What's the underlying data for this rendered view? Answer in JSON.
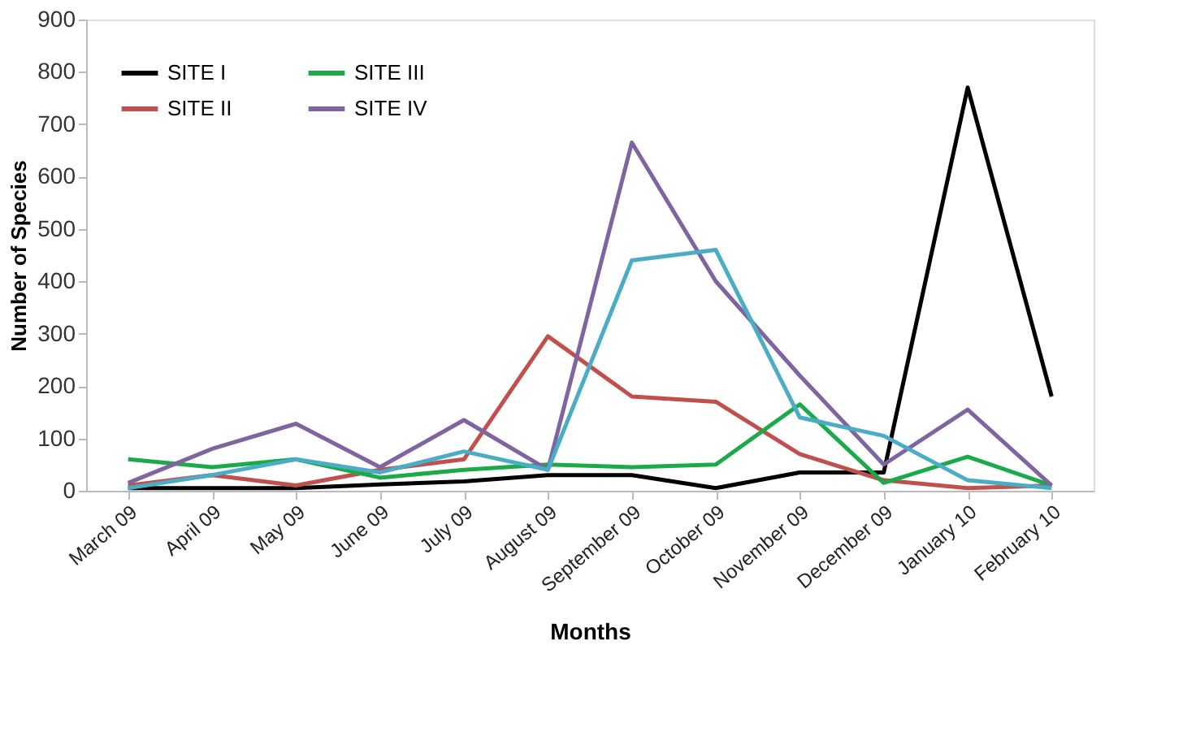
{
  "chart_data": {
    "type": "line",
    "xlabel": "Months",
    "ylabel": "Number of Species",
    "categories": [
      "March 09",
      "April 09",
      "May 09",
      "June 09",
      "July 09",
      "August 09",
      "September  09",
      "October 09",
      "November 09",
      "December 09",
      "January 10",
      "February 10"
    ],
    "ylim": [
      0,
      900
    ],
    "yticks": [
      0,
      100,
      200,
      300,
      400,
      500,
      600,
      700,
      800,
      900
    ],
    "grid": false,
    "legend": "top left",
    "marker": "none",
    "line_style": "solid",
    "series": [
      {
        "name": "SITE I",
        "color": "#000000",
        "values": [
          5,
          5,
          5,
          12,
          18,
          30,
          30,
          5,
          35,
          35,
          770,
          180
        ]
      },
      {
        "name": "SITE II",
        "color": "#c0504d",
        "values": [
          10,
          30,
          10,
          40,
          60,
          295,
          180,
          170,
          70,
          20,
          5,
          10
        ]
      },
      {
        "name": "SITE III",
        "color": "#1aaa4a",
        "values": [
          60,
          45,
          60,
          25,
          40,
          50,
          45,
          50,
          165,
          15,
          65,
          10
        ]
      },
      {
        "name": "SITE IV",
        "color": "#8064a2",
        "values": [
          15,
          80,
          128,
          45,
          135,
          40,
          665,
          400,
          220,
          50,
          155,
          10
        ]
      },
      {
        "color": "#4bacc6",
        "values": [
          5,
          30,
          60,
          35,
          75,
          40,
          440,
          460,
          140,
          105,
          20,
          5
        ]
      }
    ]
  }
}
